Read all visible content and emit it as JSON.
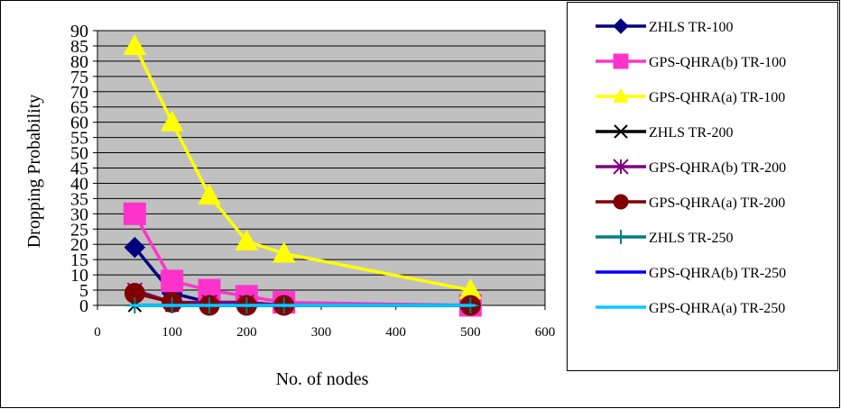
{
  "chart_data": {
    "type": "line",
    "title": "",
    "xlabel": "No. of nodes",
    "ylabel": "Dropping Probability",
    "xlim": [
      0,
      600
    ],
    "ylim": [
      0,
      90
    ],
    "x_ticks": [
      0,
      100,
      200,
      300,
      400,
      500,
      600
    ],
    "y_ticks": [
      0,
      5,
      10,
      15,
      20,
      25,
      30,
      35,
      40,
      45,
      50,
      55,
      60,
      65,
      70,
      75,
      80,
      85,
      90
    ],
    "plot_background": "#c0c0c0",
    "grid": "horizontal",
    "legend_position": "right",
    "series": [
      {
        "name": "ZHLS TR-100",
        "color": "#00007f",
        "marker": "diamond",
        "x": [
          50,
          100,
          150,
          200,
          250,
          500
        ],
        "y": [
          19,
          4,
          1,
          1,
          0,
          0
        ]
      },
      {
        "name": "GPS-QHRA(b) TR-100",
        "color": "#ff33cc",
        "marker": "square",
        "x": [
          50,
          100,
          150,
          200,
          250,
          500
        ],
        "y": [
          30,
          8,
          5,
          3,
          1,
          0
        ]
      },
      {
        "name": "GPS-QHRA(a) TR-100",
        "color": "#ffff00",
        "marker": "triangle",
        "x": [
          50,
          100,
          150,
          200,
          250,
          500
        ],
        "y": [
          85,
          60,
          36,
          21,
          17,
          5
        ]
      },
      {
        "name": "ZHLS TR-200",
        "color": "#000000",
        "marker": "x",
        "x": [
          50,
          100,
          150,
          200,
          250,
          500
        ],
        "y": [
          0,
          0,
          0,
          0,
          0,
          0
        ]
      },
      {
        "name": "GPS-QHRA(b) TR-200",
        "color": "#800080",
        "marker": "asterisk",
        "x": [
          50,
          100,
          150,
          200,
          250,
          500
        ],
        "y": [
          5,
          1,
          1,
          1,
          0,
          0
        ]
      },
      {
        "name": "GPS-QHRA(a) TR-200",
        "color": "#800000",
        "marker": "circle",
        "x": [
          50,
          100,
          150,
          200,
          250,
          500
        ],
        "y": [
          4,
          1,
          0,
          0,
          0,
          0
        ]
      },
      {
        "name": "ZHLS TR-250",
        "color": "#008080",
        "marker": "plus",
        "x": [
          50,
          100,
          150,
          200,
          250,
          500
        ],
        "y": [
          0,
          0,
          0,
          0,
          0,
          0
        ]
      },
      {
        "name": "GPS-QHRA(b) TR-250",
        "color": "#0000ff",
        "marker": "dash",
        "x": [
          50,
          100,
          150,
          200,
          250,
          500
        ],
        "y": [
          0,
          0,
          0,
          0,
          0,
          0
        ]
      },
      {
        "name": "GPS-QHRA(a) TR-250",
        "color": "#00ccff",
        "marker": "dash",
        "x": [
          50,
          100,
          150,
          200,
          250,
          500
        ],
        "y": [
          0,
          0,
          0,
          0,
          0,
          0
        ]
      }
    ]
  }
}
